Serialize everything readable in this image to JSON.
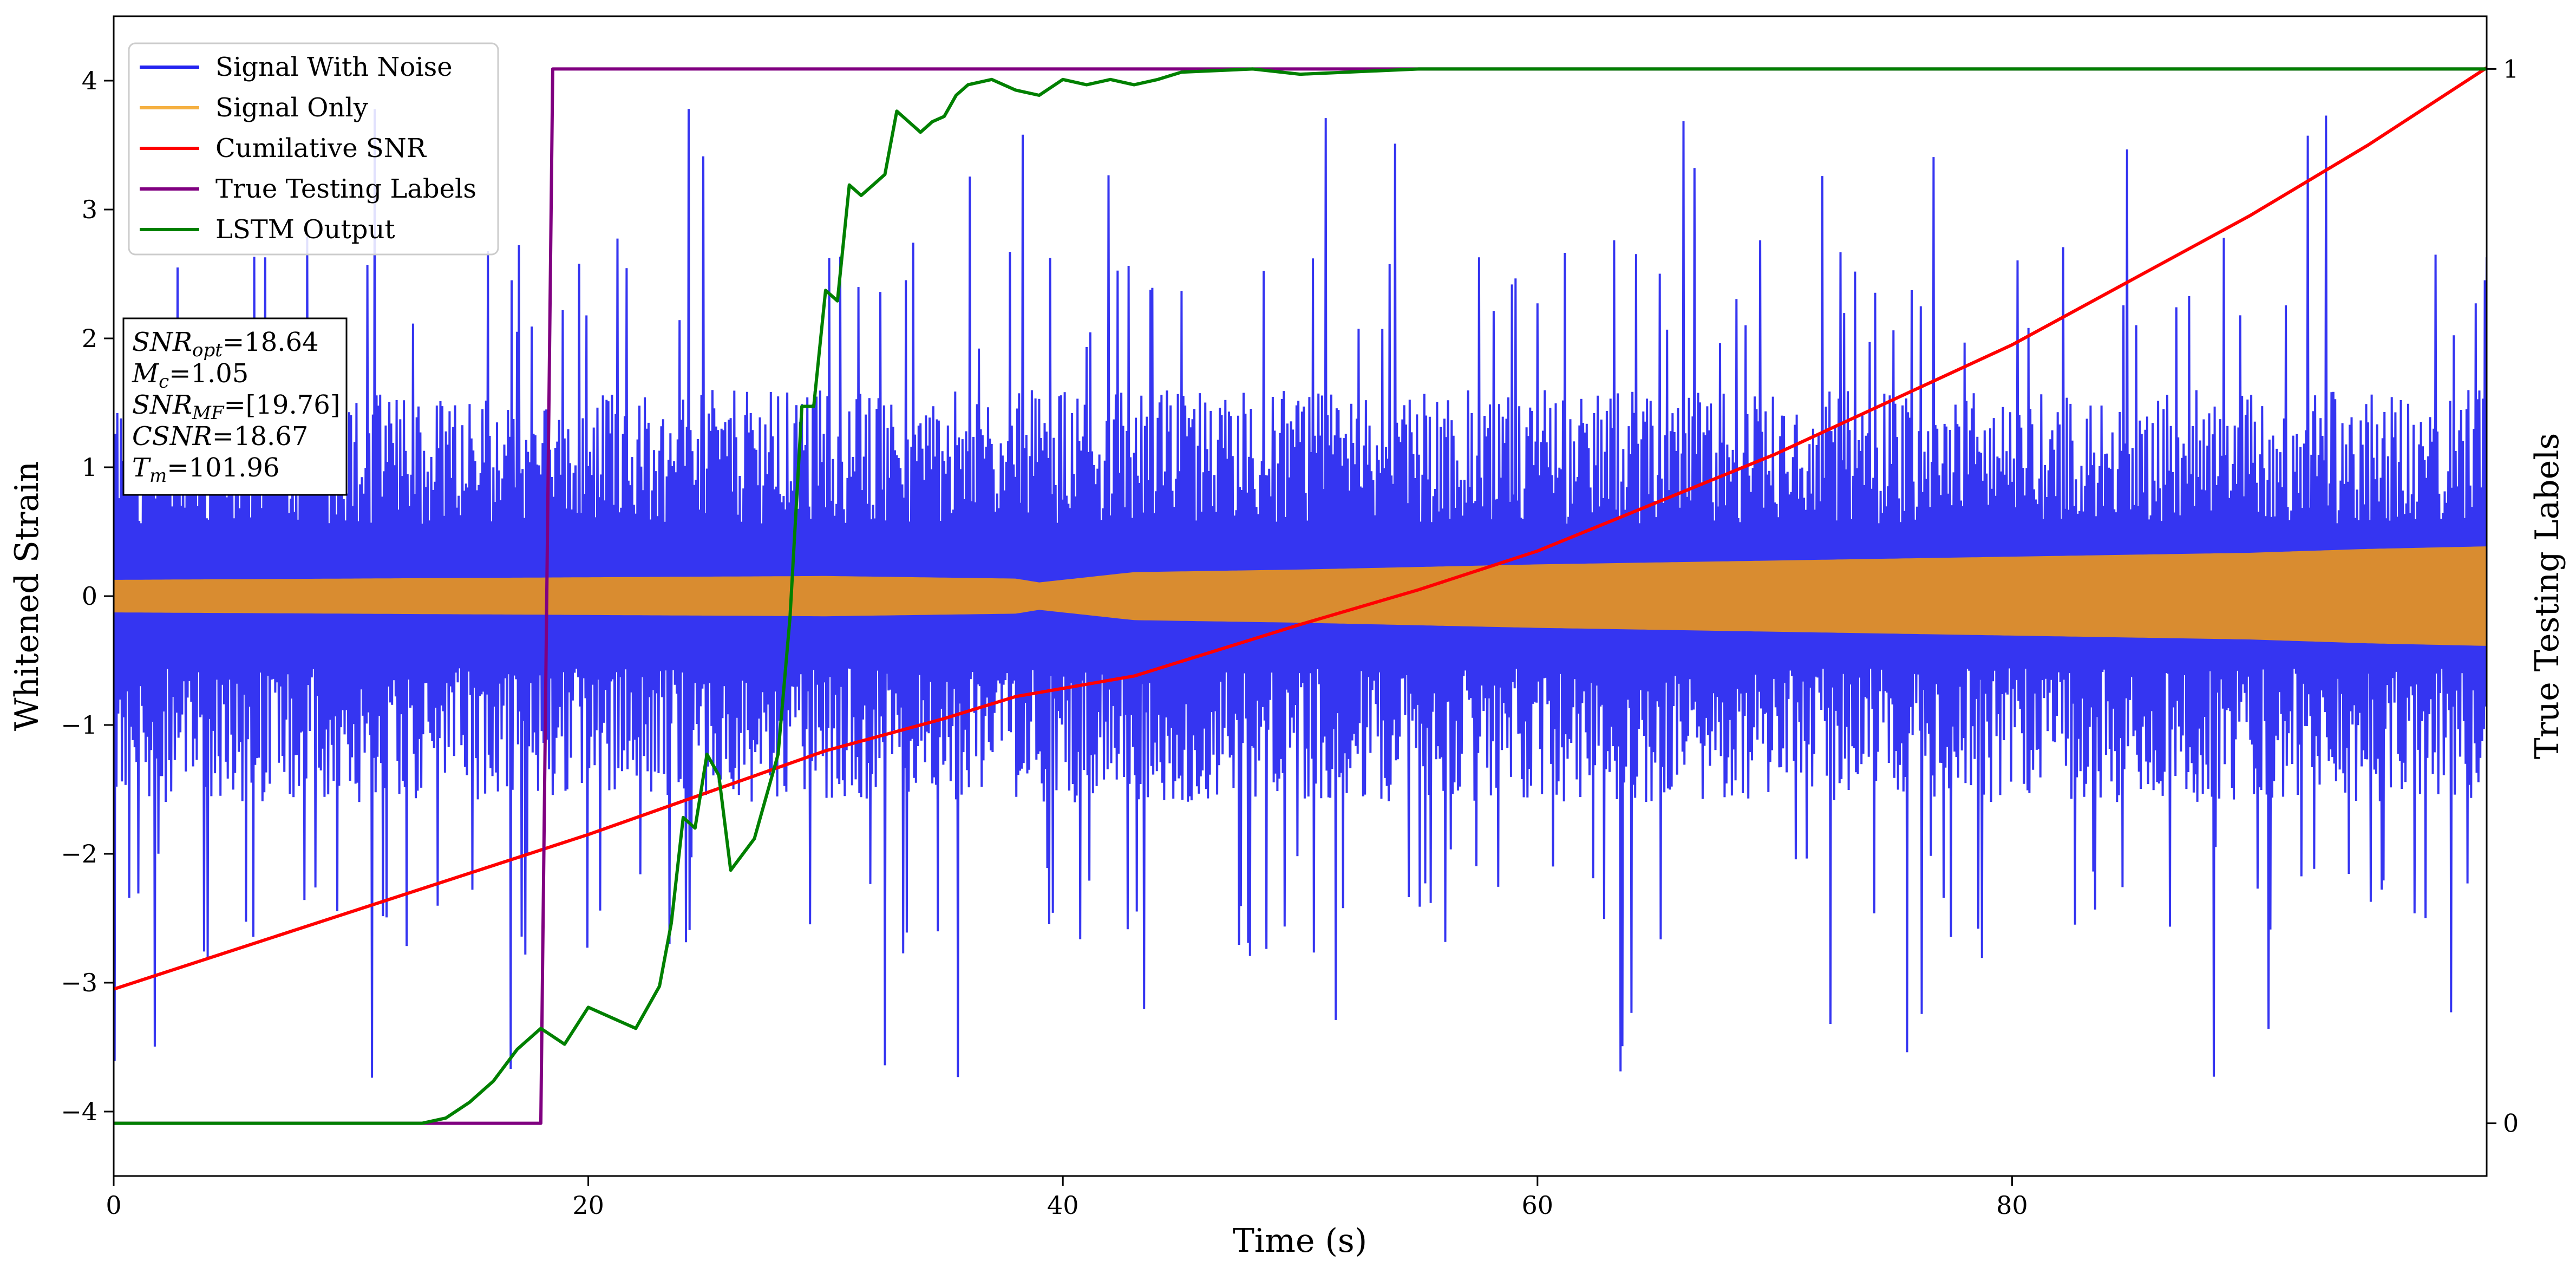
{
  "chart_data": {
    "type": "line",
    "xlabel": "Time (s)",
    "ylabel": "Whitened Strain",
    "ylabel_right": "True Testing Labels",
    "xlim": [
      0,
      100
    ],
    "ylim": [
      -4.5,
      4.5
    ],
    "ylim_right": [
      -0.05,
      1.05
    ],
    "x_ticks": [
      0,
      20,
      40,
      60,
      80
    ],
    "y_ticks": [
      -4,
      -3,
      -2,
      -1,
      0,
      1,
      2,
      3,
      4
    ],
    "y_ticks_right": [
      0,
      1
    ],
    "grid": false,
    "legend_position": "top-left",
    "legend": [
      {
        "label": "Signal With Noise",
        "color": "#2424f0"
      },
      {
        "label": "Signal Only",
        "color": "#f5b041"
      },
      {
        "label": "Cumilative SNR",
        "color": "#ff0000"
      },
      {
        "label": "True Testing Labels",
        "color": "#800080"
      },
      {
        "label": "LSTM Output",
        "color": "#008000"
      }
    ],
    "annotations": [
      {
        "base": "SNR",
        "sub": "opt",
        "rest": "=18.64"
      },
      {
        "base": "M",
        "sub": "c",
        "rest": "=1.05"
      },
      {
        "base": "SNR",
        "sub": "MF",
        "rest": "=[19.76]"
      },
      {
        "base": "CSNR",
        "sub": "",
        "rest": "=18.67"
      },
      {
        "base": "T",
        "sub": "m",
        "rest": "=101.96"
      }
    ],
    "series": [
      {
        "name": "Signal With Noise",
        "axis": "left",
        "color": "#2424f0",
        "style": "noise",
        "typical_envelope": 1.6,
        "peak_high": 4.1,
        "peak_low": -3.9,
        "x_range": [
          0,
          100
        ]
      },
      {
        "name": "Signal Only",
        "axis": "left",
        "color": "#d98c30",
        "style": "band",
        "x": [
          0,
          10,
          20,
          30,
          38,
          39,
          41,
          43,
          50,
          60,
          70,
          80,
          90,
          95,
          100
        ],
        "amplitude": [
          0.12,
          0.13,
          0.14,
          0.15,
          0.13,
          0.1,
          0.14,
          0.18,
          0.2,
          0.24,
          0.27,
          0.3,
          0.33,
          0.36,
          0.38
        ]
      },
      {
        "name": "Cumilative SNR",
        "axis": "left",
        "color": "#ff0000",
        "x": [
          0,
          10,
          20,
          30,
          35,
          38,
          43,
          50,
          55,
          60,
          70,
          80,
          90,
          95,
          100
        ],
        "y": [
          -3.05,
          -2.45,
          -1.85,
          -1.2,
          -0.95,
          -0.78,
          -0.62,
          -0.22,
          0.05,
          0.35,
          1.1,
          1.95,
          2.95,
          3.5,
          4.1
        ]
      },
      {
        "name": "True Testing Labels",
        "axis": "right",
        "color": "#800080",
        "x": [
          0,
          18.0,
          18.5,
          100
        ],
        "y": [
          0,
          0,
          1,
          1
        ]
      },
      {
        "name": "LSTM Output",
        "axis": "right",
        "color": "#008000",
        "x": [
          0,
          13,
          14,
          15,
          16,
          17,
          18,
          19,
          20,
          21,
          22,
          23,
          23.5,
          24,
          24.5,
          25,
          25.5,
          26,
          27,
          28,
          28.5,
          29,
          29.5,
          30,
          30.5,
          31,
          31.5,
          32,
          32.5,
          33,
          34,
          34.5,
          35,
          35.5,
          36,
          37,
          38,
          39,
          40,
          41,
          42,
          43,
          44,
          45,
          48,
          50,
          55,
          60,
          70,
          80,
          90,
          100
        ],
        "y": [
          0,
          0,
          0.005,
          0.02,
          0.04,
          0.07,
          0.09,
          0.075,
          0.11,
          0.1,
          0.09,
          0.13,
          0.19,
          0.29,
          0.28,
          0.35,
          0.33,
          0.24,
          0.27,
          0.35,
          0.48,
          0.68,
          0.68,
          0.79,
          0.78,
          0.89,
          0.88,
          0.89,
          0.9,
          0.96,
          0.94,
          0.95,
          0.955,
          0.975,
          0.985,
          0.99,
          0.98,
          0.975,
          0.99,
          0.985,
          0.99,
          0.985,
          0.99,
          0.997,
          1.0,
          0.995,
          1.0,
          1.0,
          1.0,
          1.0,
          1.0,
          1.0
        ]
      }
    ]
  }
}
